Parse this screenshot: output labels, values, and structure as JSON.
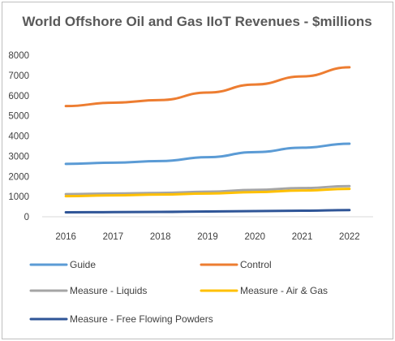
{
  "chart_data": {
    "type": "line",
    "title": "World Offshore Oil and Gas IIoT Revenues - $millions",
    "x": [
      "2016",
      "2017",
      "2018",
      "2019",
      "2020",
      "2021",
      "2022"
    ],
    "ylim": [
      0,
      8000
    ],
    "yticks": [
      "0",
      "1000",
      "2000",
      "3000",
      "4000",
      "5000",
      "6000",
      "7000",
      "8000"
    ],
    "grid": false,
    "legend_position": "bottom",
    "series": [
      {
        "name": "Guide",
        "color": "#5b9bd5",
        "values": [
          2620,
          2680,
          2760,
          2950,
          3200,
          3420,
          3620
        ]
      },
      {
        "name": "Control",
        "color": "#ed7d31",
        "values": [
          5480,
          5650,
          5780,
          6150,
          6550,
          6950,
          7400
        ]
      },
      {
        "name": "Measure - Liquids",
        "color": "#a5a5a5",
        "values": [
          1120,
          1150,
          1180,
          1240,
          1330,
          1420,
          1520
        ]
      },
      {
        "name": "Measure - Air & Gas",
        "color": "#ffc000",
        "values": [
          1020,
          1060,
          1100,
          1150,
          1220,
          1300,
          1380
        ]
      },
      {
        "name": "Measure - Free Flowing Powders",
        "color": "#2f5597",
        "values": [
          220,
          230,
          240,
          260,
          280,
          300,
          330
        ]
      }
    ]
  }
}
